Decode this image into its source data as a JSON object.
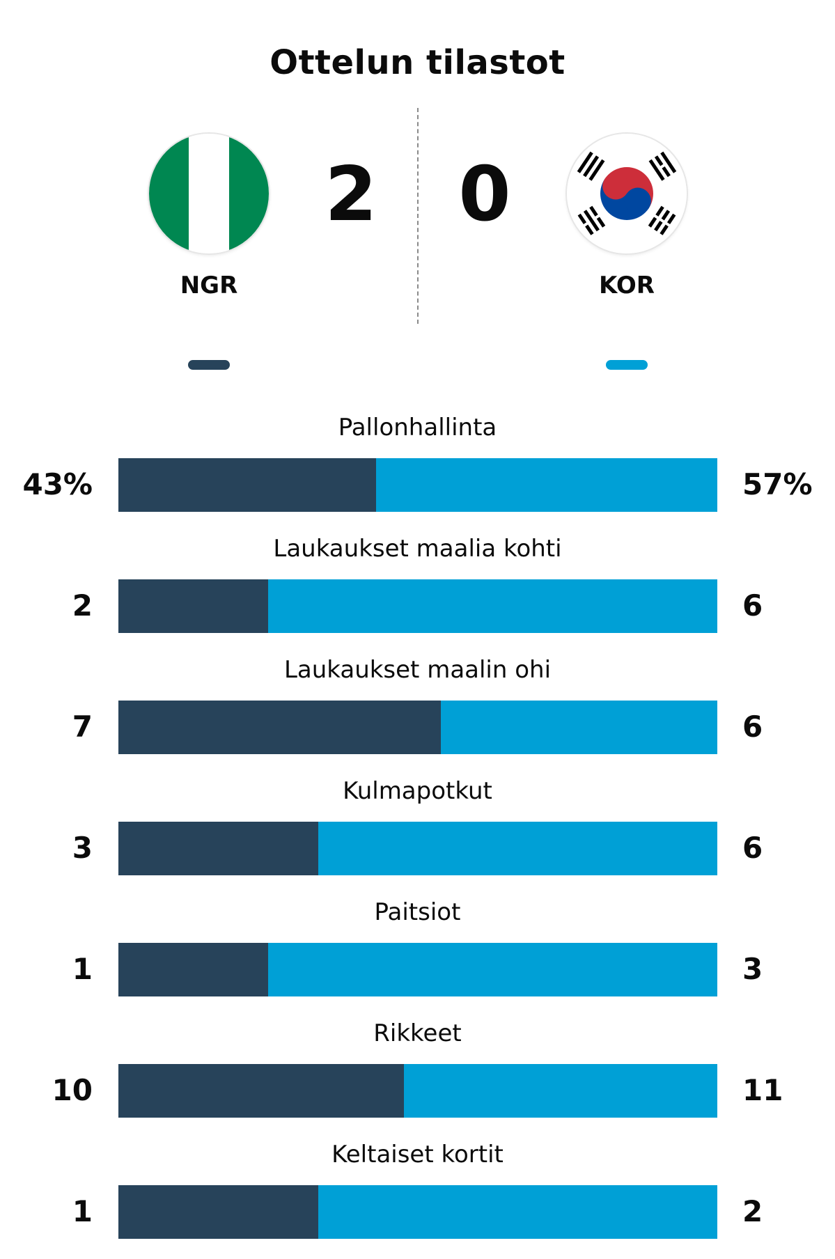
{
  "title": "Ottelun tilastot",
  "colors": {
    "home": "#27435a",
    "away": "#00a0d6",
    "nigeria_green": "#008751",
    "korea_red": "#cd2e3a",
    "korea_blue": "#0047a0"
  },
  "home": {
    "abbr": "NGR",
    "score": "2",
    "flag_icon": "nigeria-flag-icon"
  },
  "away": {
    "abbr": "KOR",
    "score": "0",
    "flag_icon": "south-korea-flag-icon"
  },
  "stats": [
    {
      "label": "Pallonhallinta",
      "home": "43%",
      "away": "57%",
      "home_value": 43,
      "away_value": 57
    },
    {
      "label": "Laukaukset maalia kohti",
      "home": "2",
      "away": "6",
      "home_value": 2,
      "away_value": 6
    },
    {
      "label": "Laukaukset maalin ohi",
      "home": "7",
      "away": "6",
      "home_value": 7,
      "away_value": 6
    },
    {
      "label": "Kulmapotkut",
      "home": "3",
      "away": "6",
      "home_value": 3,
      "away_value": 6
    },
    {
      "label": "Paitsiot",
      "home": "1",
      "away": "3",
      "home_value": 1,
      "away_value": 3
    },
    {
      "label": "Rikkeet",
      "home": "10",
      "away": "11",
      "home_value": 10,
      "away_value": 11
    },
    {
      "label": "Keltaiset kortit",
      "home": "1",
      "away": "2",
      "home_value": 1,
      "away_value": 2
    }
  ]
}
